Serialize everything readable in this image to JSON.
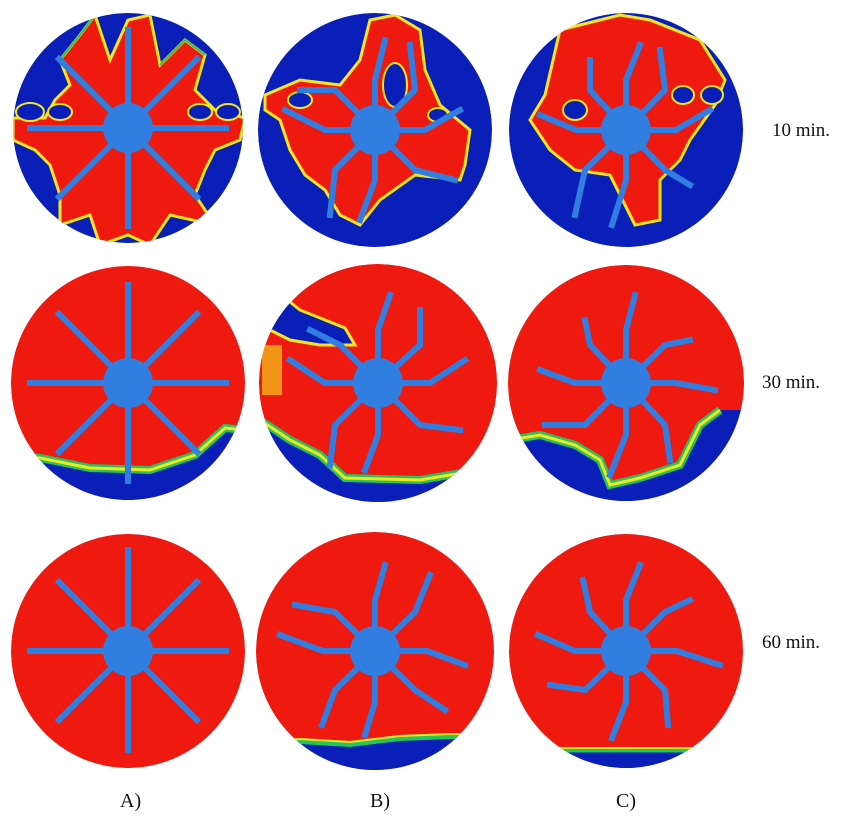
{
  "figure": {
    "time_labels": [
      "10 min.",
      "30 min.",
      "60 min."
    ],
    "column_labels": [
      "A)",
      "B)",
      "C)"
    ],
    "colors": {
      "fluid_filled": "#ee1a10",
      "empty": "#0a1fb8",
      "fin": "#2f7ee0",
      "interface_yellow": "#f4e61e",
      "interface_green": "#22c55e",
      "interface_cyan": "#1fb5e8"
    },
    "panels": [
      {
        "row": 0,
        "col": 0,
        "fin_type": "straight"
      },
      {
        "row": 0,
        "col": 1,
        "fin_type": "bent"
      },
      {
        "row": 0,
        "col": 2,
        "fin_type": "bent"
      },
      {
        "row": 1,
        "col": 0,
        "fin_type": "straight"
      },
      {
        "row": 1,
        "col": 1,
        "fin_type": "bent"
      },
      {
        "row": 1,
        "col": 2,
        "fin_type": "bent"
      },
      {
        "row": 2,
        "col": 0,
        "fin_type": "straight"
      },
      {
        "row": 2,
        "col": 1,
        "fin_type": "bent"
      },
      {
        "row": 2,
        "col": 2,
        "fin_type": "bent"
      }
    ]
  }
}
